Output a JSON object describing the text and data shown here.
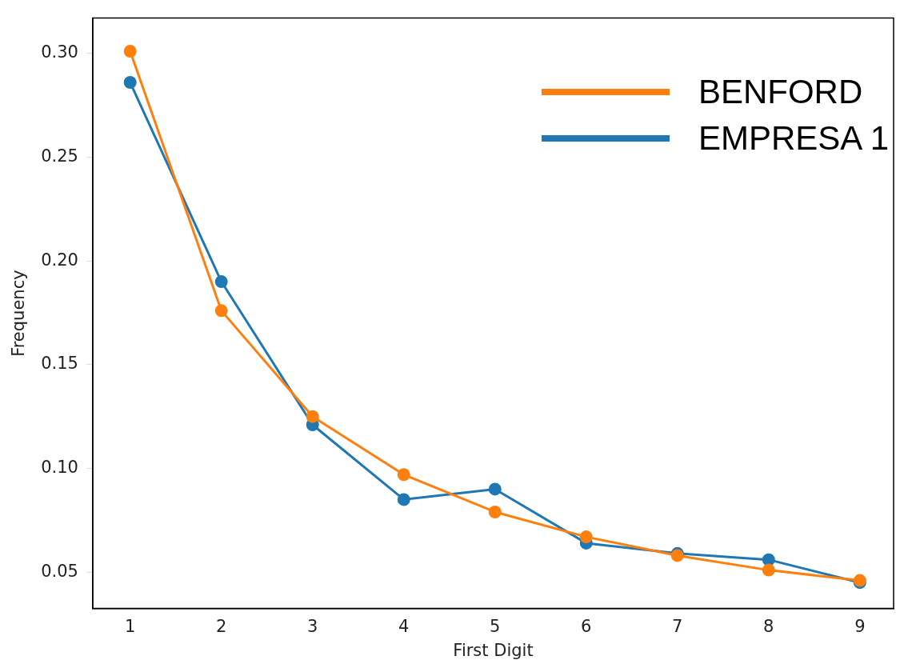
{
  "chart_data": {
    "type": "line",
    "xlabel": "First Digit",
    "ylabel": "Frequency",
    "x": [
      1,
      2,
      3,
      4,
      5,
      6,
      7,
      8,
      9
    ],
    "series": [
      {
        "name": "BENFORD",
        "color": "#ff7f0e",
        "values": [
          0.301,
          0.176,
          0.125,
          0.097,
          0.079,
          0.067,
          0.058,
          0.051,
          0.046
        ]
      },
      {
        "name": "EMPRESA 1",
        "color": "#1f77b4",
        "values": [
          0.286,
          0.19,
          0.121,
          0.085,
          0.09,
          0.064,
          0.059,
          0.056,
          0.045
        ]
      }
    ],
    "xlim": [
      0.59,
      9.37
    ],
    "xticks": [
      1,
      2,
      3,
      4,
      5,
      6,
      7,
      8,
      9
    ],
    "ylim": [
      0.0325,
      0.317
    ],
    "yticks": [
      0.05,
      {
        "value": 0.1,
        "label": "0.10"
      },
      0.15,
      {
        "value": 0.2,
        "label": "0.20"
      },
      0.25,
      {
        "value": 0.3,
        "label": "0.30"
      }
    ],
    "marker": "circle",
    "line_style": "solid",
    "grid": false,
    "legend": "top right"
  }
}
